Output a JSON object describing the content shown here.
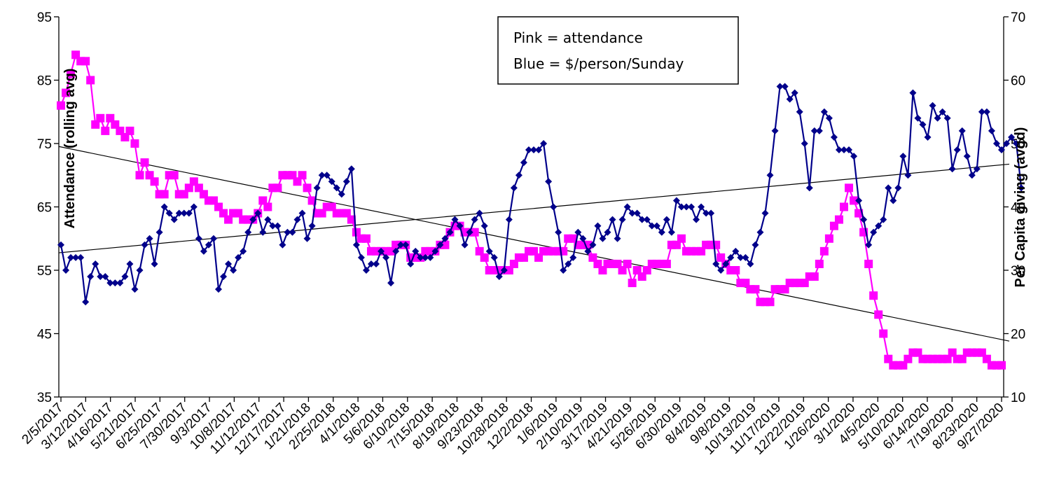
{
  "chart_data": {
    "type": "line",
    "y_left_label": "Attendance (rolling avg)",
    "y_right_label": "Per Capita giving (avgd)",
    "y_left_range": [
      35,
      95
    ],
    "y_left_ticks": [
      35,
      45,
      55,
      65,
      75,
      85,
      95
    ],
    "y_right_range": [
      10,
      70
    ],
    "y_right_ticks": [
      10,
      20,
      30,
      40,
      50,
      60,
      70
    ],
    "x_tick_labels": [
      "2/5/2017",
      "3/12/2017",
      "4/16/2017",
      "5/21/2017",
      "6/25/2017",
      "7/30/2017",
      "9/3/2017",
      "10/8/2017",
      "11/12/2017",
      "12/17/2017",
      "1/21/2018",
      "2/25/2018",
      "4/1/2018",
      "5/6/2018",
      "6/10/2018",
      "7/15/2018",
      "8/19/2018",
      "9/23/2018",
      "10/28/2018",
      "12/2/2018",
      "1/6/2019",
      "2/10/2019",
      "3/17/2019",
      "4/21/2019",
      "5/26/2019",
      "6/30/2019",
      "8/4/2019",
      "9/8/2019",
      "10/13/2019",
      "11/17/2019",
      "12/22/2019",
      "1/26/2020",
      "3/1/2020",
      "4/5/2020",
      "5/10/2020",
      "6/14/2020",
      "7/19/2020",
      "8/23/2020",
      "9/27/2020"
    ],
    "legend": {
      "line1": "Pink = attendance",
      "line2": "Blue = $/person/Sunday"
    },
    "series": [
      {
        "name": "Pink = attendance",
        "axis": "left",
        "color": "#ff00ff",
        "values": [
          81,
          83,
          86,
          89,
          88,
          88,
          85,
          78,
          79,
          77,
          79,
          78,
          77,
          76,
          77,
          75,
          70,
          72,
          70,
          69,
          67,
          67,
          70,
          70,
          67,
          67,
          68,
          69,
          68,
          67,
          66,
          66,
          65,
          64,
          63,
          64,
          64,
          63,
          63,
          63,
          64,
          66,
          65,
          68,
          68,
          70,
          70,
          70,
          69,
          70,
          68,
          66,
          64,
          64,
          65,
          65,
          64,
          64,
          64,
          63,
          61,
          60,
          60,
          58,
          58,
          58,
          58,
          58,
          59,
          59,
          59,
          57,
          57,
          57,
          58,
          58,
          58,
          59,
          59,
          61,
          62,
          62,
          61,
          61,
          61,
          58,
          57,
          55,
          55,
          55,
          55,
          55,
          56,
          57,
          57,
          58,
          58,
          57,
          58,
          58,
          58,
          58,
          58,
          60,
          60,
          59,
          59,
          59,
          57,
          56,
          55,
          56,
          56,
          56,
          55,
          56,
          53,
          55,
          54,
          55,
          56,
          56,
          56,
          56,
          59,
          59,
          60,
          58,
          58,
          58,
          58,
          59,
          59,
          59,
          57,
          56,
          55,
          55,
          53,
          53,
          52,
          52,
          50,
          50,
          50,
          52,
          52,
          52,
          53,
          53,
          53,
          53,
          54,
          54,
          56,
          58,
          60,
          62,
          63,
          65,
          68,
          66,
          64,
          61,
          56,
          51,
          48,
          45,
          41,
          40,
          40,
          40,
          41,
          42,
          42,
          41,
          41,
          41,
          41,
          41,
          41,
          42,
          41,
          41,
          42,
          42,
          42,
          42,
          41,
          40,
          40,
          40
        ]
      },
      {
        "name": "Blue = $/person/Sunday",
        "axis": "right",
        "color": "#00008b",
        "values": [
          34,
          30,
          32,
          32,
          32,
          25,
          29,
          31,
          29,
          29,
          28,
          28,
          28,
          29,
          31,
          27,
          30,
          34,
          35,
          31,
          36,
          40,
          39,
          38,
          39,
          39,
          39,
          40,
          35,
          33,
          34,
          35,
          27,
          29,
          31,
          30,
          32,
          33,
          36,
          38,
          39,
          36,
          38,
          37,
          37,
          34,
          36,
          36,
          38,
          39,
          35,
          37,
          43,
          45,
          45,
          44,
          43,
          42,
          44,
          46,
          34,
          32,
          30,
          31,
          31,
          33,
          32,
          28,
          33,
          34,
          34,
          31,
          33,
          32,
          32,
          32,
          33,
          34,
          35,
          36,
          38,
          37,
          34,
          36,
          38,
          39,
          37,
          33,
          32,
          29,
          30,
          38,
          43,
          45,
          47,
          49,
          49,
          49,
          50,
          44,
          40,
          36,
          30,
          31,
          32,
          36,
          35,
          33,
          34,
          37,
          35,
          36,
          38,
          35,
          38,
          40,
          39,
          39,
          38,
          38,
          37,
          37,
          36,
          38,
          36,
          41,
          40,
          40,
          40,
          38,
          40,
          39,
          39,
          31,
          30,
          31,
          32,
          33,
          32,
          32,
          31,
          34,
          36,
          39,
          45,
          52,
          59,
          59,
          57,
          58,
          55,
          50,
          43,
          52,
          52,
          55,
          54,
          51,
          49,
          49,
          49,
          48,
          41,
          38,
          34,
          36,
          37,
          38,
          43,
          41,
          43,
          48,
          45,
          58,
          54,
          53,
          51,
          56,
          54,
          55,
          54,
          46,
          49,
          52,
          48,
          45,
          46,
          55,
          55,
          52,
          50,
          49,
          50,
          51,
          50,
          43
        ]
      }
    ]
  }
}
